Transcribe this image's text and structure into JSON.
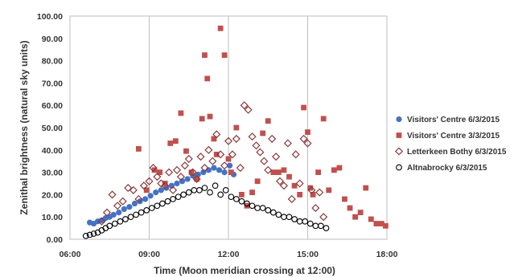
{
  "chart_data": {
    "type": "scatter",
    "xlabel": "Time (Moon meridian crossing at 12:00)",
    "ylabel": "Zenithal brightness (natural sky units)",
    "xlim": [
      6.0,
      18.0
    ],
    "ylim": [
      0,
      100
    ],
    "x_ticks": [
      "06:00",
      "09:00",
      "12:00",
      "15:00",
      "18:00"
    ],
    "y_ticks": [
      "0.00",
      "10.00",
      "20.00",
      "30.00",
      "40.00",
      "50.00",
      "60.00",
      "70.00",
      "80.00",
      "90.00",
      "100.00"
    ],
    "grid": "vertical",
    "legend_position": "right",
    "series": [
      {
        "name": "Visitors' Centre 6/3/2015",
        "marker": "filled-circle",
        "color": "#4472c4",
        "x": [
          6.75,
          6.9,
          7.05,
          7.2,
          7.35,
          7.5,
          7.65,
          7.85,
          8.05,
          8.25,
          8.45,
          8.65,
          8.85,
          9.05,
          9.25,
          9.45,
          9.65,
          9.85,
          10.05,
          10.25,
          10.45,
          10.65,
          10.85,
          11.05,
          11.25,
          11.45,
          11.65,
          11.85,
          12.05,
          12.2
        ],
        "y": [
          7.5,
          7.0,
          8.0,
          8.5,
          9.5,
          10.0,
          11.0,
          12.0,
          13.5,
          14.5,
          16.0,
          17.0,
          18.0,
          19.5,
          21.0,
          22.0,
          23.0,
          24.0,
          25.0,
          26.0,
          27.0,
          28.5,
          29.0,
          30.0,
          31.0,
          32.0,
          31.0,
          30.0,
          33.0,
          29.0
        ]
      },
      {
        "name": "Visitors' Centre 3/3/2015",
        "marker": "filled-square",
        "color": "#c0504d",
        "x": [
          8.6,
          8.9,
          9.2,
          9.4,
          9.6,
          9.8,
          10.0,
          10.2,
          10.4,
          10.6,
          10.8,
          11.0,
          11.1,
          11.2,
          11.3,
          11.45,
          11.55,
          11.7,
          11.85,
          12.0,
          12.1,
          12.3,
          12.5,
          12.7,
          12.9,
          13.1,
          13.3,
          13.5,
          13.7,
          13.9,
          14.1,
          14.3,
          14.5,
          14.7,
          14.85,
          15.0,
          15.1,
          15.2,
          15.4,
          15.6,
          15.8,
          16.0,
          16.2,
          16.4,
          16.6,
          16.8,
          17.0,
          17.2,
          17.4,
          17.6,
          17.8,
          17.95
        ],
        "y": [
          40.5,
          22.0,
          31.0,
          30.0,
          25.0,
          43.0,
          44.0,
          56.5,
          39.5,
          30.0,
          27.0,
          54.0,
          82.5,
          72.0,
          55.0,
          45.0,
          38.0,
          94.5,
          82.5,
          36.0,
          30.0,
          50.0,
          20.0,
          15.0,
          21.0,
          26.0,
          47.5,
          53.0,
          30.0,
          30.0,
          31.0,
          28.0,
          24.0,
          20.0,
          59.0,
          48.0,
          23.0,
          20.0,
          30.0,
          54.0,
          22.0,
          31.0,
          32.0,
          18.0,
          14.0,
          10.0,
          12.0,
          23.0,
          9.0,
          7.0,
          7.0,
          6.0
        ]
      },
      {
        "name": "Letterkeen Bothy 6/3/2015",
        "marker": "open-diamond",
        "color": "#8b3a3a",
        "x": [
          7.2,
          7.4,
          7.6,
          7.8,
          8.0,
          8.2,
          8.4,
          8.6,
          8.8,
          9.0,
          9.15,
          9.3,
          9.45,
          9.6,
          9.75,
          9.9,
          10.05,
          10.2,
          10.35,
          10.5,
          10.65,
          10.8,
          10.95,
          11.1,
          11.25,
          11.4,
          11.55,
          11.7,
          11.85,
          12.0,
          12.15,
          12.3,
          12.45,
          12.6,
          12.75,
          12.9,
          13.05,
          13.2,
          13.35,
          13.5,
          13.65,
          13.8,
          13.95,
          14.1,
          14.25,
          14.4,
          14.55,
          14.7,
          14.85,
          15.0,
          15.15,
          15.3,
          15.45,
          15.6
        ],
        "y": [
          8.0,
          12.0,
          20.0,
          15.0,
          17.0,
          23.0,
          22.0,
          18.0,
          24.0,
          26.0,
          32.0,
          28.0,
          25.0,
          24.0,
          30.0,
          22.0,
          31.0,
          28.0,
          33.0,
          36.0,
          30.0,
          27.0,
          37.0,
          32.0,
          40.0,
          35.0,
          47.0,
          38.0,
          33.0,
          44.0,
          38.0,
          45.0,
          32.0,
          60.0,
          58.0,
          46.0,
          42.0,
          39.0,
          35.0,
          31.0,
          45.0,
          37.0,
          26.0,
          24.0,
          43.0,
          18.0,
          38.0,
          25.0,
          45.0,
          43.0,
          22.0,
          14.0,
          21.0,
          10.0
        ]
      },
      {
        "name": "Altnabrocky 6/3/2015",
        "marker": "open-circle",
        "color": "#000000",
        "x": [
          6.6,
          6.75,
          6.9,
          7.05,
          7.2,
          7.35,
          7.5,
          7.7,
          7.9,
          8.1,
          8.3,
          8.5,
          8.7,
          8.9,
          9.1,
          9.3,
          9.5,
          9.7,
          9.9,
          10.1,
          10.3,
          10.5,
          10.7,
          10.9,
          11.1,
          11.3,
          11.5,
          11.7,
          11.9,
          12.1,
          12.3,
          12.5,
          12.7,
          12.9,
          13.1,
          13.3,
          13.5,
          13.7,
          13.9,
          14.1,
          14.3,
          14.5,
          14.7,
          14.9,
          15.1,
          15.3,
          15.5,
          15.7
        ],
        "y": [
          1.5,
          2.0,
          2.5,
          3.0,
          4.0,
          5.0,
          6.0,
          7.0,
          8.0,
          9.0,
          10.0,
          11.0,
          12.0,
          13.0,
          14.0,
          15.0,
          16.0,
          17.0,
          18.0,
          19.0,
          20.0,
          21.0,
          22.0,
          22.0,
          23.0,
          21.0,
          24.0,
          20.0,
          22.0,
          19.0,
          18.0,
          17.0,
          16.0,
          15.0,
          14.0,
          14.0,
          13.0,
          12.0,
          11.0,
          10.0,
          10.0,
          9.0,
          8.0,
          8.0,
          7.0,
          6.0,
          6.0,
          5.0
        ]
      }
    ]
  }
}
